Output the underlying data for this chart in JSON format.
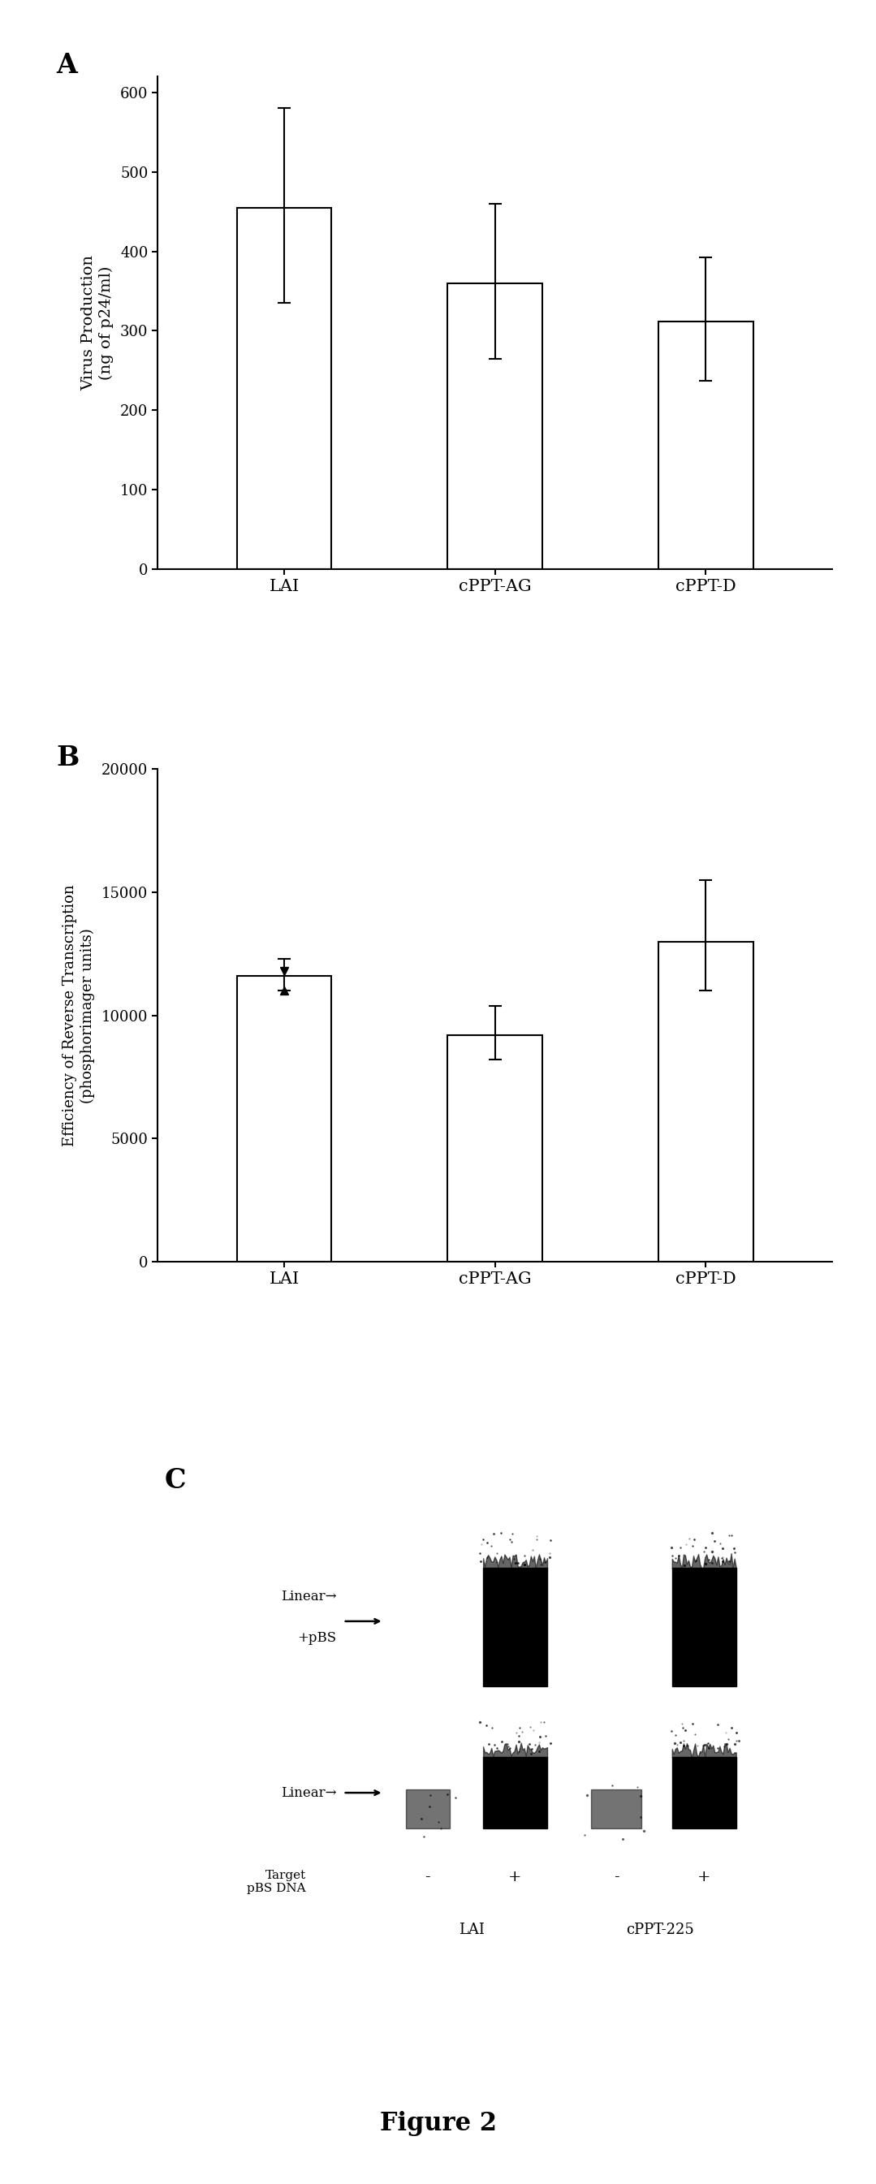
{
  "panel_A": {
    "categories": [
      "LAI",
      "cPPT-AG",
      "cPPT-D"
    ],
    "values": [
      455,
      360,
      312
    ],
    "errors_upper": [
      125,
      100,
      80
    ],
    "errors_lower": [
      120,
      95,
      75
    ],
    "ylabel_line1": "Virus Production",
    "ylabel_line2": "(ng of p24/ml)",
    "ylim": [
      0,
      620
    ],
    "yticks": [
      0,
      100,
      200,
      300,
      400,
      500,
      600
    ],
    "label": "A"
  },
  "panel_B": {
    "categories": [
      "LAI",
      "cPPT-AG",
      "cPPT-D"
    ],
    "values": [
      11600,
      9200,
      13000
    ],
    "errors_upper": [
      700,
      1200,
      2500
    ],
    "errors_lower": [
      600,
      1000,
      2000
    ],
    "marker_values": [
      11800,
      11000
    ],
    "ylabel_line1": "Efficiency of Reverse Transcription",
    "ylabel_line2": "(phosphorimager units)",
    "ylim": [
      0,
      20000
    ],
    "yticks": [
      0,
      5000,
      10000,
      15000,
      20000
    ],
    "label": "B"
  },
  "panel_C": {
    "label": "C",
    "upper_band_label_line1": "Linear",
    "upper_band_label_line2": "+pBS",
    "lower_band_label": "Linear",
    "target_label_line1": "Target",
    "target_label_line2": "pBS DNA",
    "group1_label": "LAI",
    "group2_label": "cPPT-225",
    "lane_signs": [
      "-",
      "+",
      "-",
      "+"
    ]
  },
  "figure_label": "Figure 2",
  "bg_color": "#ffffff",
  "bar_color": "white",
  "bar_edgecolor": "black"
}
